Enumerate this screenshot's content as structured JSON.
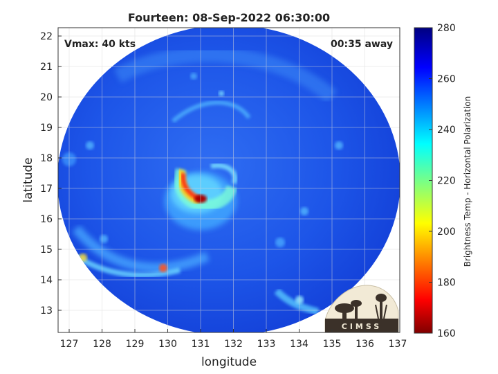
{
  "title": "Fourteen: 08-Sep-2022 06:30:00",
  "vmax_label": "Vmax: 40 kts",
  "away_label": "00:35 away",
  "xlabel": "longitude",
  "ylabel": "latitude",
  "colorbar_label": "Brightness Temp - Horizontal Polarization",
  "logo_text": "CIMSS",
  "x_ticks": [
    "127",
    "128",
    "129",
    "130",
    "131",
    "132",
    "133",
    "134",
    "135",
    "136",
    "137"
  ],
  "y_ticks": [
    "13",
    "14",
    "15",
    "16",
    "17",
    "18",
    "19",
    "20",
    "21",
    "22"
  ],
  "colorbar_ticks": [
    "160",
    "180",
    "200",
    "220",
    "240",
    "260",
    "280"
  ],
  "colors": {
    "background_field": "#1a4ee8",
    "cold_core": "#c00000",
    "warm_band": "#60d8ff"
  },
  "chart_data": {
    "type": "heatmap",
    "title": "Fourteen: 08-Sep-2022 06:30:00",
    "xlabel": "longitude",
    "ylabel": "latitude",
    "xlim": [
      126.7,
      137.1
    ],
    "ylim": [
      12.3,
      22.3
    ],
    "grid": true,
    "colorbar": {
      "label": "Brightness Temp - Horizontal Polarization",
      "range": [
        160,
        280
      ]
    },
    "storm_center": {
      "lon": 131.0,
      "lat": 16.9
    },
    "min_brightness_temp_region": {
      "lon": 131.0,
      "lat": 16.6,
      "approx_value": 170
    },
    "annotations": [
      "Vmax: 40 kts",
      "00:35 away"
    ]
  }
}
